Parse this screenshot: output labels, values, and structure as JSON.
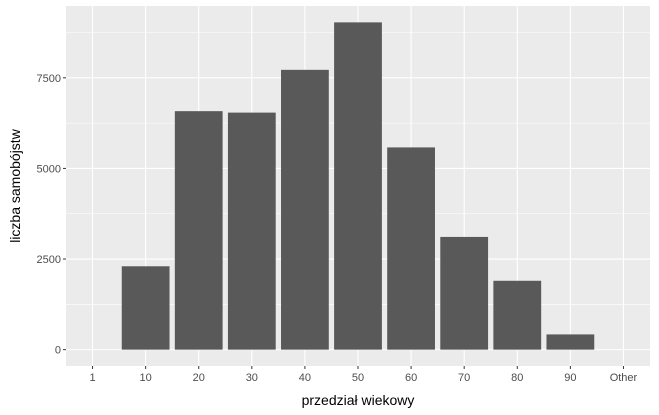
{
  "chart_data": {
    "type": "bar",
    "categories": [
      "1",
      "10",
      "20",
      "30",
      "40",
      "50",
      "60",
      "70",
      "80",
      "90",
      "Other"
    ],
    "values": [
      0,
      2300,
      6580,
      6540,
      7720,
      9030,
      5580,
      3110,
      1900,
      420,
      0
    ],
    "xlabel": "przedział wiekowy",
    "ylabel": "liczba samobójstw",
    "yticks": [
      "0",
      "2500",
      "5000",
      "7500"
    ],
    "ytick_values": [
      0,
      2500,
      5000,
      7500
    ],
    "ylim": [
      -451.5,
      9481.5
    ],
    "grid": true,
    "legend": "none",
    "colors": {
      "panel": "#ebebeb",
      "grid_major": "#ffffff",
      "bar": "#595959",
      "tick_text": "#4d4d4d"
    }
  }
}
